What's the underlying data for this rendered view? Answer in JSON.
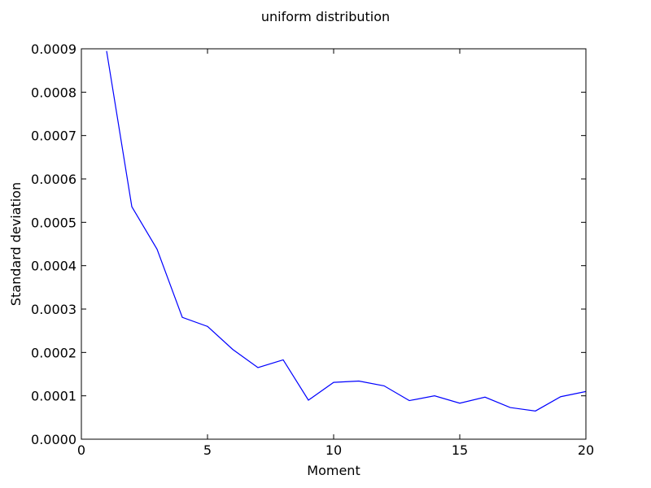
{
  "chart_data": {
    "type": "line",
    "title": "uniform distribution",
    "xlabel": "Moment",
    "ylabel": "Standard deviation",
    "xlim": [
      0,
      20
    ],
    "ylim": [
      0,
      0.0009
    ],
    "xticks": [
      "0",
      "5",
      "10",
      "15",
      "20"
    ],
    "yticks": [
      "0.0000",
      "0.0001",
      "0.0002",
      "0.0003",
      "0.0004",
      "0.0005",
      "0.0006",
      "0.0007",
      "0.0008",
      "0.0009"
    ],
    "grid": false,
    "line_color": "#0000ff",
    "series": [
      {
        "x": [
          1,
          2,
          3,
          4,
          5,
          6,
          7,
          8,
          9,
          10,
          11,
          12,
          13,
          14,
          15,
          16,
          17,
          18,
          19,
          20
        ],
        "values": [
          0.000895,
          0.000536,
          0.000438,
          0.000281,
          0.00026,
          0.000207,
          0.000165,
          0.000183,
          9e-05,
          0.000131,
          0.000134,
          0.000123,
          8.9e-05,
          0.0001,
          8.3e-05,
          9.7e-05,
          7.3e-05,
          6.5e-05,
          9.8e-05,
          0.00011
        ]
      }
    ]
  }
}
